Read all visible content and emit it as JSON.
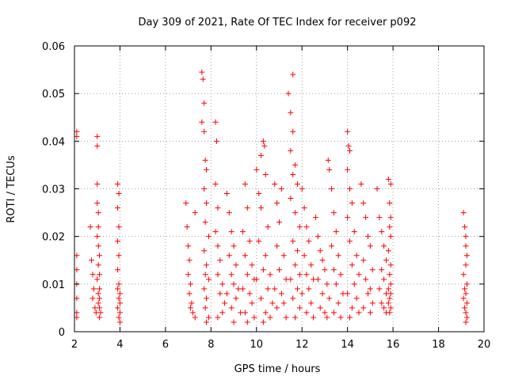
{
  "chart_data": {
    "type": "scatter",
    "title": "Day 309 of 2021, Rate Of TEC Index for receiver p092",
    "xlabel": "GPS time / hours",
    "ylabel": "ROTI / TECUs",
    "xlim": [
      2,
      20
    ],
    "ylim": [
      0,
      0.06
    ],
    "x_ticks": [
      "2",
      "4",
      "6",
      "8",
      "10",
      "12",
      "14",
      "16",
      "18",
      "20"
    ],
    "y_ticks": [
      "0",
      "0.01",
      "0.02",
      "0.03",
      "0.04",
      "0.05",
      "0.06"
    ],
    "grid": true,
    "marker": "plus",
    "marker_color": "#ff0000",
    "series": [
      {
        "points": [
          [
            2.1,
            0.042
          ],
          [
            2.1,
            0.041
          ],
          [
            2.1,
            0.016
          ],
          [
            2.1,
            0.013
          ],
          [
            2.1,
            0.01
          ],
          [
            2.1,
            0.007
          ],
          [
            2.1,
            0.004
          ],
          [
            2.1,
            0.003
          ],
          [
            2.7,
            0.022
          ],
          [
            2.75,
            0.015
          ],
          [
            2.8,
            0.012
          ],
          [
            2.85,
            0.009
          ],
          [
            2.8,
            0.007
          ],
          [
            2.9,
            0.005
          ],
          [
            2.95,
            0.004
          ],
          [
            3.0,
            0.041
          ],
          [
            3.0,
            0.039
          ],
          [
            3.0,
            0.031
          ],
          [
            3.0,
            0.027
          ],
          [
            3.05,
            0.025
          ],
          [
            3.05,
            0.022
          ],
          [
            3.0,
            0.02
          ],
          [
            3.05,
            0.018
          ],
          [
            3.1,
            0.016
          ],
          [
            3.05,
            0.014
          ],
          [
            3.1,
            0.012
          ],
          [
            3.0,
            0.011
          ],
          [
            3.1,
            0.009
          ],
          [
            3.05,
            0.008
          ],
          [
            3.1,
            0.007
          ],
          [
            3.05,
            0.006
          ],
          [
            3.1,
            0.005
          ],
          [
            3.15,
            0.004
          ],
          [
            3.1,
            0.003
          ],
          [
            3.9,
            0.031
          ],
          [
            3.95,
            0.029
          ],
          [
            3.9,
            0.026
          ],
          [
            3.95,
            0.022
          ],
          [
            3.9,
            0.019
          ],
          [
            3.95,
            0.016
          ],
          [
            3.9,
            0.013
          ],
          [
            3.95,
            0.01
          ],
          [
            3.9,
            0.009
          ],
          [
            4.0,
            0.008
          ],
          [
            3.95,
            0.007
          ],
          [
            4.0,
            0.006
          ],
          [
            3.9,
            0.005
          ],
          [
            4.0,
            0.004
          ],
          [
            3.95,
            0.003
          ],
          [
            4.0,
            0.002
          ],
          [
            6.9,
            0.027
          ],
          [
            6.95,
            0.022
          ],
          [
            7.0,
            0.018
          ],
          [
            7.05,
            0.015
          ],
          [
            7.0,
            0.012
          ],
          [
            7.1,
            0.01
          ],
          [
            7.05,
            0.008
          ],
          [
            7.15,
            0.006
          ],
          [
            7.1,
            0.005
          ],
          [
            7.2,
            0.004
          ],
          [
            7.3,
            0.025
          ],
          [
            7.3,
            0.003
          ],
          [
            7.6,
            0.0545
          ],
          [
            7.65,
            0.053
          ],
          [
            7.7,
            0.048
          ],
          [
            7.6,
            0.044
          ],
          [
            7.7,
            0.042
          ],
          [
            7.75,
            0.036
          ],
          [
            7.8,
            0.034
          ],
          [
            7.7,
            0.03
          ],
          [
            7.8,
            0.027
          ],
          [
            7.75,
            0.023
          ],
          [
            7.9,
            0.02
          ],
          [
            7.7,
            0.017
          ],
          [
            7.8,
            0.014
          ],
          [
            7.75,
            0.012
          ],
          [
            7.9,
            0.011
          ],
          [
            7.7,
            0.009
          ],
          [
            7.8,
            0.007
          ],
          [
            7.75,
            0.005
          ],
          [
            7.9,
            0.003
          ],
          [
            7.8,
            0.002
          ],
          [
            8.2,
            0.044
          ],
          [
            8.25,
            0.04
          ],
          [
            8.2,
            0.031
          ],
          [
            8.3,
            0.026
          ],
          [
            8.2,
            0.021
          ],
          [
            8.3,
            0.018
          ],
          [
            8.4,
            0.015
          ],
          [
            8.3,
            0.012
          ],
          [
            8.5,
            0.01
          ],
          [
            8.4,
            0.008
          ],
          [
            8.6,
            0.006
          ],
          [
            8.5,
            0.004
          ],
          [
            8.3,
            0.003
          ],
          [
            8.7,
            0.029
          ],
          [
            8.8,
            0.025
          ],
          [
            8.9,
            0.021
          ],
          [
            9.0,
            0.018
          ],
          [
            8.8,
            0.016
          ],
          [
            9.1,
            0.014
          ],
          [
            8.9,
            0.012
          ],
          [
            9.0,
            0.01
          ],
          [
            9.2,
            0.009
          ],
          [
            8.7,
            0.008
          ],
          [
            9.1,
            0.007
          ],
          [
            8.9,
            0.005
          ],
          [
            9.3,
            0.004
          ],
          [
            9.0,
            0.002
          ],
          [
            9.5,
            0.031
          ],
          [
            9.6,
            0.026
          ],
          [
            9.4,
            0.021
          ],
          [
            9.7,
            0.019
          ],
          [
            9.5,
            0.016
          ],
          [
            9.8,
            0.014
          ],
          [
            9.6,
            0.012
          ],
          [
            9.9,
            0.011
          ],
          [
            9.4,
            0.009
          ],
          [
            9.7,
            0.008
          ],
          [
            9.8,
            0.006
          ],
          [
            9.5,
            0.004
          ],
          [
            9.9,
            0.003
          ],
          [
            9.6,
            0.002
          ],
          [
            10.0,
            0.034
          ],
          [
            10.1,
            0.029
          ],
          [
            10.2,
            0.037
          ],
          [
            10.3,
            0.04
          ],
          [
            10.35,
            0.039
          ],
          [
            10.4,
            0.033
          ],
          [
            10.2,
            0.026
          ],
          [
            10.5,
            0.022
          ],
          [
            10.1,
            0.019
          ],
          [
            10.4,
            0.016
          ],
          [
            10.3,
            0.013
          ],
          [
            10.6,
            0.012
          ],
          [
            10.0,
            0.011
          ],
          [
            10.5,
            0.009
          ],
          [
            10.2,
            0.007
          ],
          [
            10.7,
            0.006
          ],
          [
            10.4,
            0.004
          ],
          [
            10.6,
            0.003
          ],
          [
            10.3,
            0.002
          ],
          [
            10.8,
            0.031
          ],
          [
            10.9,
            0.027
          ],
          [
            11.0,
            0.023
          ],
          [
            11.1,
            0.03
          ],
          [
            10.9,
            0.018
          ],
          [
            11.2,
            0.016
          ],
          [
            11.0,
            0.013
          ],
          [
            11.3,
            0.011
          ],
          [
            10.8,
            0.009
          ],
          [
            11.1,
            0.008
          ],
          [
            11.2,
            0.006
          ],
          [
            10.9,
            0.005
          ],
          [
            11.3,
            0.003
          ],
          [
            11.4,
            0.05
          ],
          [
            11.5,
            0.046
          ],
          [
            11.6,
            0.054
          ],
          [
            11.6,
            0.042
          ],
          [
            11.5,
            0.038
          ],
          [
            11.7,
            0.035
          ],
          [
            11.6,
            0.033
          ],
          [
            11.8,
            0.031
          ],
          [
            11.5,
            0.028
          ],
          [
            11.7,
            0.025
          ],
          [
            11.9,
            0.022
          ],
          [
            11.6,
            0.019
          ],
          [
            11.8,
            0.017
          ],
          [
            11.7,
            0.014
          ],
          [
            11.9,
            0.012
          ],
          [
            11.5,
            0.011
          ],
          [
            11.8,
            0.009
          ],
          [
            11.6,
            0.007
          ],
          [
            11.9,
            0.005
          ],
          [
            11.7,
            0.003
          ],
          [
            12.0,
            0.03
          ],
          [
            12.1,
            0.026
          ],
          [
            12.2,
            0.022
          ],
          [
            12.3,
            0.019
          ],
          [
            12.1,
            0.016
          ],
          [
            12.4,
            0.014
          ],
          [
            12.2,
            0.012
          ],
          [
            12.5,
            0.011
          ],
          [
            12.3,
            0.009
          ],
          [
            12.0,
            0.008
          ],
          [
            12.4,
            0.006
          ],
          [
            12.2,
            0.004
          ],
          [
            12.5,
            0.003
          ],
          [
            12.6,
            0.024
          ],
          [
            12.7,
            0.02
          ],
          [
            12.8,
            0.017
          ],
          [
            12.9,
            0.015
          ],
          [
            13.0,
            0.013
          ],
          [
            12.7,
            0.011
          ],
          [
            13.1,
            0.01
          ],
          [
            12.9,
            0.008
          ],
          [
            13.2,
            0.007
          ],
          [
            12.8,
            0.005
          ],
          [
            13.0,
            0.004
          ],
          [
            13.1,
            0.003
          ],
          [
            13.15,
            0.036
          ],
          [
            13.2,
            0.034
          ],
          [
            13.3,
            0.03
          ],
          [
            13.4,
            0.025
          ],
          [
            13.5,
            0.021
          ],
          [
            13.3,
            0.018
          ],
          [
            13.6,
            0.016
          ],
          [
            13.4,
            0.013
          ],
          [
            13.7,
            0.012
          ],
          [
            13.5,
            0.01
          ],
          [
            13.8,
            0.008
          ],
          [
            13.6,
            0.006
          ],
          [
            13.4,
            0.004
          ],
          [
            13.7,
            0.003
          ],
          [
            14.0,
            0.042
          ],
          [
            14.05,
            0.039
          ],
          [
            14.1,
            0.038
          ],
          [
            14.0,
            0.034
          ],
          [
            14.1,
            0.03
          ],
          [
            14.2,
            0.027
          ],
          [
            14.0,
            0.024
          ],
          [
            14.3,
            0.021
          ],
          [
            14.1,
            0.019
          ],
          [
            14.4,
            0.016
          ],
          [
            14.2,
            0.014
          ],
          [
            14.5,
            0.012
          ],
          [
            14.3,
            0.01
          ],
          [
            14.0,
            0.008
          ],
          [
            14.4,
            0.007
          ],
          [
            14.2,
            0.005
          ],
          [
            14.5,
            0.004
          ],
          [
            14.1,
            0.003
          ],
          [
            14.6,
            0.031
          ],
          [
            14.7,
            0.027
          ],
          [
            14.8,
            0.024
          ],
          [
            14.9,
            0.02
          ],
          [
            15.0,
            0.018
          ],
          [
            14.7,
            0.015
          ],
          [
            15.1,
            0.013
          ],
          [
            14.8,
            0.011
          ],
          [
            15.0,
            0.009
          ],
          [
            14.9,
            0.008
          ],
          [
            15.1,
            0.006
          ],
          [
            14.7,
            0.005
          ],
          [
            15.0,
            0.004
          ],
          [
            15.3,
            0.03
          ],
          [
            15.4,
            0.024
          ],
          [
            15.5,
            0.021
          ],
          [
            15.6,
            0.018
          ],
          [
            15.7,
            0.015
          ],
          [
            15.5,
            0.013
          ],
          [
            15.6,
            0.011
          ],
          [
            15.4,
            0.009
          ],
          [
            15.7,
            0.008
          ],
          [
            15.5,
            0.006
          ],
          [
            15.6,
            0.005
          ],
          [
            15.7,
            0.004
          ],
          [
            15.8,
            0.032
          ],
          [
            15.9,
            0.031
          ],
          [
            15.85,
            0.027
          ],
          [
            15.9,
            0.024
          ],
          [
            15.85,
            0.022
          ],
          [
            15.9,
            0.02
          ],
          [
            15.8,
            0.017
          ],
          [
            15.9,
            0.014
          ],
          [
            15.85,
            0.012
          ],
          [
            15.9,
            0.01
          ],
          [
            15.8,
            0.009
          ],
          [
            15.9,
            0.008
          ],
          [
            15.85,
            0.007
          ],
          [
            15.8,
            0.006
          ],
          [
            15.9,
            0.005
          ],
          [
            15.85,
            0.004
          ],
          [
            19.1,
            0.025
          ],
          [
            19.15,
            0.022
          ],
          [
            19.2,
            0.02
          ],
          [
            19.2,
            0.018
          ],
          [
            19.25,
            0.016
          ],
          [
            19.2,
            0.014
          ],
          [
            19.1,
            0.012
          ],
          [
            19.25,
            0.01
          ],
          [
            19.15,
            0.009
          ],
          [
            19.2,
            0.008
          ],
          [
            19.1,
            0.007
          ],
          [
            19.25,
            0.006
          ],
          [
            19.15,
            0.005
          ],
          [
            19.2,
            0.004
          ],
          [
            19.25,
            0.003
          ],
          [
            19.2,
            0.002
          ]
        ]
      }
    ]
  }
}
